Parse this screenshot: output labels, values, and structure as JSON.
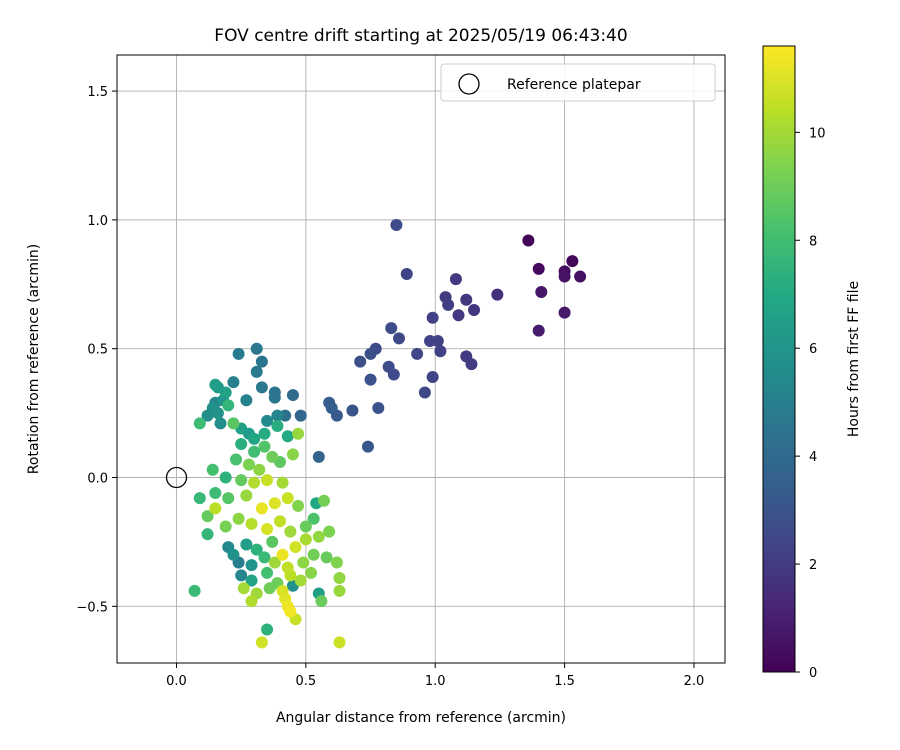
{
  "chart_data": {
    "type": "scatter",
    "title": "FOV centre drift starting at 2025/05/19 06:43:40",
    "xlabel": "Angular distance from reference (arcmin)",
    "ylabel": "Rotation from reference (arcmin)",
    "xlim": [
      -0.23,
      2.12
    ],
    "ylim": [
      -0.72,
      1.64
    ],
    "xticks": [
      0.0,
      0.5,
      1.0,
      1.5,
      2.0
    ],
    "xtick_labels": [
      "0.0",
      "0.5",
      "1.0",
      "1.5",
      "2.0"
    ],
    "yticks": [
      -0.5,
      0.0,
      0.5,
      1.0,
      1.5
    ],
    "ytick_labels": [
      "−0.5",
      "0.0",
      "0.5",
      "1.0",
      "1.5"
    ],
    "grid": true,
    "legend": {
      "position": "top-right",
      "entries": [
        {
          "label": "Reference platepar",
          "marker": "open-circle"
        }
      ]
    },
    "reference_point": {
      "x": 0.0,
      "y": 0.0
    },
    "colorbar": {
      "label": "Hours from first FF file",
      "colormap": "viridis",
      "range": [
        0,
        11.6
      ],
      "ticks": [
        0,
        2,
        4,
        6,
        8,
        10
      ],
      "tick_labels": [
        "0",
        "2",
        "4",
        "6",
        "8",
        "10"
      ]
    },
    "points": [
      {
        "x": 1.36,
        "y": 0.92,
        "t": 0.1
      },
      {
        "x": 1.53,
        "y": 0.84,
        "t": 0.2
      },
      {
        "x": 1.4,
        "y": 0.81,
        "t": 0.3
      },
      {
        "x": 1.5,
        "y": 0.8,
        "t": 0.4
      },
      {
        "x": 1.56,
        "y": 0.78,
        "t": 0.5
      },
      {
        "x": 1.5,
        "y": 0.78,
        "t": 0.6
      },
      {
        "x": 1.41,
        "y": 0.72,
        "t": 0.7
      },
      {
        "x": 1.5,
        "y": 0.64,
        "t": 0.8
      },
      {
        "x": 1.4,
        "y": 0.57,
        "t": 0.9
      },
      {
        "x": 0.85,
        "y": 0.98,
        "t": 2.6
      },
      {
        "x": 0.89,
        "y": 0.79,
        "t": 2.3
      },
      {
        "x": 1.08,
        "y": 0.77,
        "t": 1.9
      },
      {
        "x": 1.24,
        "y": 0.71,
        "t": 1.6
      },
      {
        "x": 1.04,
        "y": 0.7,
        "t": 2.0
      },
      {
        "x": 1.12,
        "y": 0.69,
        "t": 1.8
      },
      {
        "x": 1.05,
        "y": 0.67,
        "t": 2.1
      },
      {
        "x": 1.15,
        "y": 0.65,
        "t": 1.8
      },
      {
        "x": 1.09,
        "y": 0.63,
        "t": 1.9
      },
      {
        "x": 0.99,
        "y": 0.62,
        "t": 2.2
      },
      {
        "x": 0.83,
        "y": 0.58,
        "t": 2.7
      },
      {
        "x": 0.86,
        "y": 0.54,
        "t": 2.5
      },
      {
        "x": 0.98,
        "y": 0.53,
        "t": 2.3
      },
      {
        "x": 1.01,
        "y": 0.53,
        "t": 2.2
      },
      {
        "x": 0.77,
        "y": 0.5,
        "t": 2.6
      },
      {
        "x": 1.02,
        "y": 0.49,
        "t": 2.2
      },
      {
        "x": 0.75,
        "y": 0.48,
        "t": 2.8
      },
      {
        "x": 0.93,
        "y": 0.48,
        "t": 2.4
      },
      {
        "x": 1.12,
        "y": 0.47,
        "t": 2.0
      },
      {
        "x": 0.71,
        "y": 0.45,
        "t": 2.8
      },
      {
        "x": 1.14,
        "y": 0.44,
        "t": 2.0
      },
      {
        "x": 0.82,
        "y": 0.43,
        "t": 2.7
      },
      {
        "x": 0.84,
        "y": 0.4,
        "t": 2.6
      },
      {
        "x": 0.99,
        "y": 0.39,
        "t": 2.3
      },
      {
        "x": 0.75,
        "y": 0.38,
        "t": 2.9
      },
      {
        "x": 0.96,
        "y": 0.33,
        "t": 2.5
      },
      {
        "x": 0.78,
        "y": 0.27,
        "t": 2.9
      },
      {
        "x": 0.68,
        "y": 0.26,
        "t": 3.1
      },
      {
        "x": 0.74,
        "y": 0.12,
        "t": 3.2
      },
      {
        "x": 0.62,
        "y": 0.24,
        "t": 3.3
      },
      {
        "x": 0.59,
        "y": 0.29,
        "t": 3.4
      },
      {
        "x": 0.6,
        "y": 0.27,
        "t": 3.5
      },
      {
        "x": 0.55,
        "y": 0.08,
        "t": 3.7
      },
      {
        "x": 0.48,
        "y": 0.24,
        "t": 3.8
      },
      {
        "x": 0.45,
        "y": 0.32,
        "t": 4.0
      },
      {
        "x": 0.31,
        "y": 0.5,
        "t": 4.6
      },
      {
        "x": 0.24,
        "y": 0.48,
        "t": 4.8
      },
      {
        "x": 0.33,
        "y": 0.45,
        "t": 4.5
      },
      {
        "x": 0.31,
        "y": 0.41,
        "t": 4.7
      },
      {
        "x": 0.22,
        "y": 0.37,
        "t": 5.0
      },
      {
        "x": 0.33,
        "y": 0.35,
        "t": 4.6
      },
      {
        "x": 0.38,
        "y": 0.33,
        "t": 4.4
      },
      {
        "x": 0.38,
        "y": 0.31,
        "t": 4.5
      },
      {
        "x": 0.27,
        "y": 0.3,
        "t": 5.1
      },
      {
        "x": 0.42,
        "y": 0.24,
        "t": 4.3
      },
      {
        "x": 0.39,
        "y": 0.24,
        "t": 5.2
      },
      {
        "x": 0.35,
        "y": 0.22,
        "t": 5.5
      },
      {
        "x": 0.12,
        "y": 0.24,
        "t": 5.6
      },
      {
        "x": 0.16,
        "y": 0.25,
        "t": 5.9
      },
      {
        "x": 0.14,
        "y": 0.27,
        "t": 5.8
      },
      {
        "x": 0.15,
        "y": 0.29,
        "t": 5.4
      },
      {
        "x": 0.18,
        "y": 0.3,
        "t": 6.0
      },
      {
        "x": 0.15,
        "y": 0.36,
        "t": 6.4
      },
      {
        "x": 0.16,
        "y": 0.35,
        "t": 6.2
      },
      {
        "x": 0.19,
        "y": 0.33,
        "t": 6.6
      },
      {
        "x": 0.17,
        "y": 0.21,
        "t": 5.7
      },
      {
        "x": 0.2,
        "y": 0.28,
        "t": 7.6
      },
      {
        "x": 0.09,
        "y": 0.21,
        "t": 7.9
      },
      {
        "x": 0.22,
        "y": 0.21,
        "t": 8.6
      },
      {
        "x": 0.25,
        "y": 0.19,
        "t": 6.5
      },
      {
        "x": 0.28,
        "y": 0.17,
        "t": 6.3
      },
      {
        "x": 0.3,
        "y": 0.15,
        "t": 6.8
      },
      {
        "x": 0.34,
        "y": 0.17,
        "t": 7.1
      },
      {
        "x": 0.39,
        "y": 0.2,
        "t": 7.2
      },
      {
        "x": 0.43,
        "y": 0.16,
        "t": 7.0
      },
      {
        "x": 0.47,
        "y": 0.17,
        "t": 9.8
      },
      {
        "x": 0.45,
        "y": 0.09,
        "t": 9.5
      },
      {
        "x": 0.25,
        "y": 0.13,
        "t": 7.3
      },
      {
        "x": 0.3,
        "y": 0.1,
        "t": 8.0
      },
      {
        "x": 0.34,
        "y": 0.12,
        "t": 8.4
      },
      {
        "x": 0.37,
        "y": 0.08,
        "t": 9.0
      },
      {
        "x": 0.4,
        "y": 0.06,
        "t": 8.7
      },
      {
        "x": 0.23,
        "y": 0.07,
        "t": 8.2
      },
      {
        "x": 0.28,
        "y": 0.05,
        "t": 9.3
      },
      {
        "x": 0.32,
        "y": 0.03,
        "t": 9.6
      },
      {
        "x": 0.14,
        "y": 0.03,
        "t": 8.1
      },
      {
        "x": 0.19,
        "y": 0.0,
        "t": 7.4
      },
      {
        "x": 0.25,
        "y": -0.01,
        "t": 8.8
      },
      {
        "x": 0.3,
        "y": -0.02,
        "t": 10.2
      },
      {
        "x": 0.35,
        "y": -0.01,
        "t": 10.6
      },
      {
        "x": 0.41,
        "y": -0.02,
        "t": 10.0
      },
      {
        "x": 0.09,
        "y": -0.08,
        "t": 7.7
      },
      {
        "x": 0.15,
        "y": -0.06,
        "t": 7.9
      },
      {
        "x": 0.2,
        "y": -0.08,
        "t": 8.5
      },
      {
        "x": 0.27,
        "y": -0.07,
        "t": 9.8
      },
      {
        "x": 0.33,
        "y": -0.12,
        "t": 11.2
      },
      {
        "x": 0.38,
        "y": -0.1,
        "t": 11.0
      },
      {
        "x": 0.43,
        "y": -0.08,
        "t": 10.7
      },
      {
        "x": 0.47,
        "y": -0.11,
        "t": 9.4
      },
      {
        "x": 0.54,
        "y": -0.1,
        "t": 6.9
      },
      {
        "x": 0.57,
        "y": -0.09,
        "t": 9.1
      },
      {
        "x": 0.15,
        "y": -0.12,
        "t": 10.4
      },
      {
        "x": 0.12,
        "y": -0.15,
        "t": 8.8
      },
      {
        "x": 0.19,
        "y": -0.19,
        "t": 9.2
      },
      {
        "x": 0.24,
        "y": -0.16,
        "t": 9.6
      },
      {
        "x": 0.29,
        "y": -0.18,
        "t": 10.3
      },
      {
        "x": 0.35,
        "y": -0.2,
        "t": 10.9
      },
      {
        "x": 0.4,
        "y": -0.17,
        "t": 10.5
      },
      {
        "x": 0.44,
        "y": -0.21,
        "t": 9.9
      },
      {
        "x": 0.5,
        "y": -0.19,
        "t": 8.9
      },
      {
        "x": 0.53,
        "y": -0.16,
        "t": 8.3
      },
      {
        "x": 0.12,
        "y": -0.22,
        "t": 7.6
      },
      {
        "x": 0.2,
        "y": -0.27,
        "t": 5.4
      },
      {
        "x": 0.22,
        "y": -0.3,
        "t": 5.9
      },
      {
        "x": 0.27,
        "y": -0.26,
        "t": 6.4
      },
      {
        "x": 0.31,
        "y": -0.28,
        "t": 7.4
      },
      {
        "x": 0.37,
        "y": -0.25,
        "t": 8.6
      },
      {
        "x": 0.41,
        "y": -0.3,
        "t": 11.3
      },
      {
        "x": 0.46,
        "y": -0.27,
        "t": 10.8
      },
      {
        "x": 0.5,
        "y": -0.24,
        "t": 10.1
      },
      {
        "x": 0.55,
        "y": -0.23,
        "t": 9.7
      },
      {
        "x": 0.59,
        "y": -0.21,
        "t": 9.3
      },
      {
        "x": 0.24,
        "y": -0.33,
        "t": 4.9
      },
      {
        "x": 0.29,
        "y": -0.34,
        "t": 6.0
      },
      {
        "x": 0.34,
        "y": -0.31,
        "t": 7.8
      },
      {
        "x": 0.38,
        "y": -0.33,
        "t": 9.9
      },
      {
        "x": 0.43,
        "y": -0.35,
        "t": 10.5
      },
      {
        "x": 0.49,
        "y": -0.33,
        "t": 9.6
      },
      {
        "x": 0.53,
        "y": -0.3,
        "t": 9.1
      },
      {
        "x": 0.58,
        "y": -0.31,
        "t": 8.9
      },
      {
        "x": 0.62,
        "y": -0.33,
        "t": 9.4
      },
      {
        "x": 0.25,
        "y": -0.38,
        "t": 5.3
      },
      {
        "x": 0.29,
        "y": -0.4,
        "t": 6.7
      },
      {
        "x": 0.35,
        "y": -0.37,
        "t": 8.1
      },
      {
        "x": 0.39,
        "y": -0.41,
        "t": 9.0
      },
      {
        "x": 0.44,
        "y": -0.38,
        "t": 10.4
      },
      {
        "x": 0.48,
        "y": -0.4,
        "t": 10.0
      },
      {
        "x": 0.52,
        "y": -0.37,
        "t": 9.5
      },
      {
        "x": 0.63,
        "y": -0.39,
        "t": 9.7
      },
      {
        "x": 0.26,
        "y": -0.43,
        "t": 10.0
      },
      {
        "x": 0.31,
        "y": -0.45,
        "t": 9.9
      },
      {
        "x": 0.36,
        "y": -0.43,
        "t": 9.0
      },
      {
        "x": 0.41,
        "y": -0.44,
        "t": 10.9
      },
      {
        "x": 0.45,
        "y": -0.42,
        "t": 5.8
      },
      {
        "x": 0.55,
        "y": -0.45,
        "t": 6.5
      },
      {
        "x": 0.63,
        "y": -0.44,
        "t": 9.8
      },
      {
        "x": 0.07,
        "y": -0.44,
        "t": 7.8
      },
      {
        "x": 0.29,
        "y": -0.48,
        "t": 10.2
      },
      {
        "x": 0.42,
        "y": -0.47,
        "t": 11.1
      },
      {
        "x": 0.43,
        "y": -0.5,
        "t": 11.3
      },
      {
        "x": 0.44,
        "y": -0.52,
        "t": 11.4
      },
      {
        "x": 0.56,
        "y": -0.48,
        "t": 8.9
      },
      {
        "x": 0.46,
        "y": -0.55,
        "t": 10.6
      },
      {
        "x": 0.35,
        "y": -0.59,
        "t": 7.4
      },
      {
        "x": 0.33,
        "y": -0.64,
        "t": 10.8
      },
      {
        "x": 0.63,
        "y": -0.64,
        "t": 10.7
      }
    ]
  }
}
